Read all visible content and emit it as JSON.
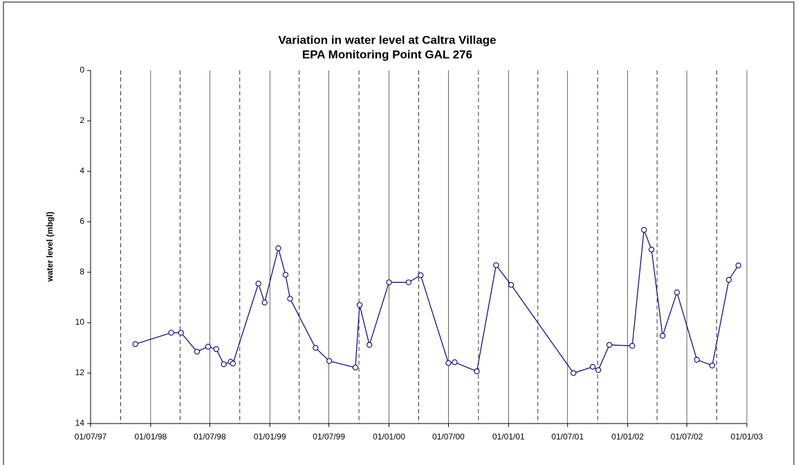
{
  "chart_data": {
    "type": "line",
    "title": [
      "Variation in water level at Caltra Village",
      "EPA Monitoring Point GAL 276"
    ],
    "y_label": "water level (mbgl)",
    "y_inverted": true,
    "color": "#000080",
    "marker": "open-circle",
    "grid": true,
    "xlim": [
      "1997-07-01",
      "2003-01-01"
    ],
    "xticks": [
      {
        "value": "1997-07-01",
        "label": "01/07/97"
      },
      {
        "value": "1998-01-01",
        "label": "01/01/98"
      },
      {
        "value": "1998-07-01",
        "label": "01/07/98"
      },
      {
        "value": "1999-01-01",
        "label": "01/01/99"
      },
      {
        "value": "1999-07-01",
        "label": "01/07/99"
      },
      {
        "value": "2000-01-01",
        "label": "01/01/00"
      },
      {
        "value": "2000-07-01",
        "label": "01/07/00"
      },
      {
        "value": "2001-01-01",
        "label": "01/01/01"
      },
      {
        "value": "2001-07-01",
        "label": "01/07/01"
      },
      {
        "value": "2002-01-01",
        "label": "01/01/02"
      },
      {
        "value": "2002-07-01",
        "label": "01/07/02"
      },
      {
        "value": "2003-01-01",
        "label": "01/01/03"
      }
    ],
    "xminorticks": [
      "1997-10-01",
      "1998-04-01",
      "1998-10-01",
      "1999-04-01",
      "1999-10-01",
      "2000-04-01",
      "2000-10-01",
      "2001-04-01",
      "2001-10-01",
      "2002-04-01",
      "2002-10-01"
    ],
    "ylim": [
      0,
      14
    ],
    "yticks": [
      0,
      2,
      4,
      6,
      8,
      10,
      12,
      14
    ],
    "x": [
      "1997-11-15",
      "1998-03-05",
      "1998-04-04",
      "1998-05-23",
      "1998-06-26",
      "1998-07-21",
      "1998-08-13",
      "1998-09-03",
      "1998-09-10",
      "1998-11-27",
      "1998-12-16",
      "1999-01-27",
      "1999-02-18",
      "1999-03-04",
      "1999-05-21",
      "1999-07-02",
      "1999-09-20",
      "1999-10-03",
      "1999-11-02",
      "2000-01-01",
      "2000-03-01",
      "2000-04-07",
      "2000-07-01",
      "2000-07-20",
      "2000-09-26",
      "2000-11-24",
      "2001-01-09",
      "2001-07-19",
      "2001-09-16",
      "2001-10-03",
      "2001-11-06",
      "2002-01-15",
      "2002-02-20",
      "2002-03-15",
      "2002-04-18",
      "2002-06-01",
      "2002-08-01",
      "2002-09-17",
      "2002-11-07",
      "2002-12-06"
    ],
    "values": [
      10.85,
      10.4,
      10.4,
      11.15,
      10.95,
      11.05,
      11.65,
      11.55,
      11.62,
      8.45,
      9.2,
      7.05,
      8.1,
      9.05,
      11.0,
      11.52,
      11.78,
      9.3,
      10.88,
      8.4,
      8.4,
      8.12,
      11.6,
      11.57,
      11.93,
      7.72,
      8.5,
      12.0,
      11.75,
      11.88,
      10.88,
      10.92,
      6.32,
      7.1,
      10.52,
      8.8,
      11.47,
      11.7,
      8.3,
      7.73
    ]
  }
}
